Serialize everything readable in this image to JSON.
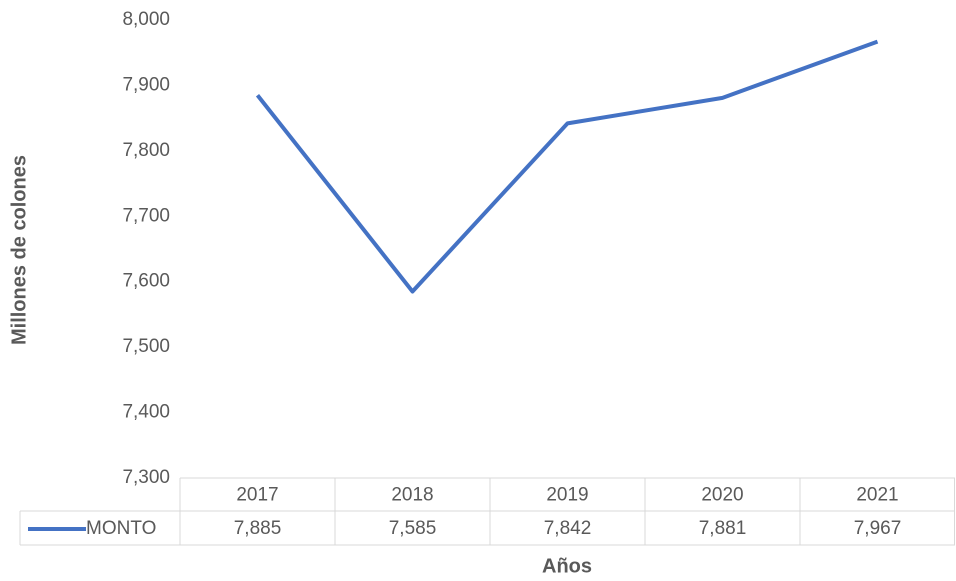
{
  "chart_data": {
    "type": "line",
    "x_label": "Años",
    "y_label": "Millones de colones",
    "categories": [
      "2017",
      "2018",
      "2019",
      "2020",
      "2021"
    ],
    "series": [
      {
        "name": "MONTO",
        "color": "#4472c4",
        "values": [
          7885,
          7585,
          7842,
          7881,
          7967
        ],
        "value_labels": [
          "7,885",
          "7,585",
          "7,842",
          "7,881",
          "7,967"
        ]
      }
    ],
    "ylim": [
      7300,
      8000
    ],
    "yticks": [
      {
        "value": 7300,
        "label": "7,300"
      },
      {
        "value": 7400,
        "label": "7,400"
      },
      {
        "value": 7500,
        "label": "7,500"
      },
      {
        "value": 7600,
        "label": "7,600"
      },
      {
        "value": 7700,
        "label": "7,700"
      },
      {
        "value": 7800,
        "label": "7,800"
      },
      {
        "value": 7900,
        "label": "7,900"
      },
      {
        "value": 8000,
        "label": "8,000"
      }
    ],
    "grid": false,
    "data_table": true
  }
}
